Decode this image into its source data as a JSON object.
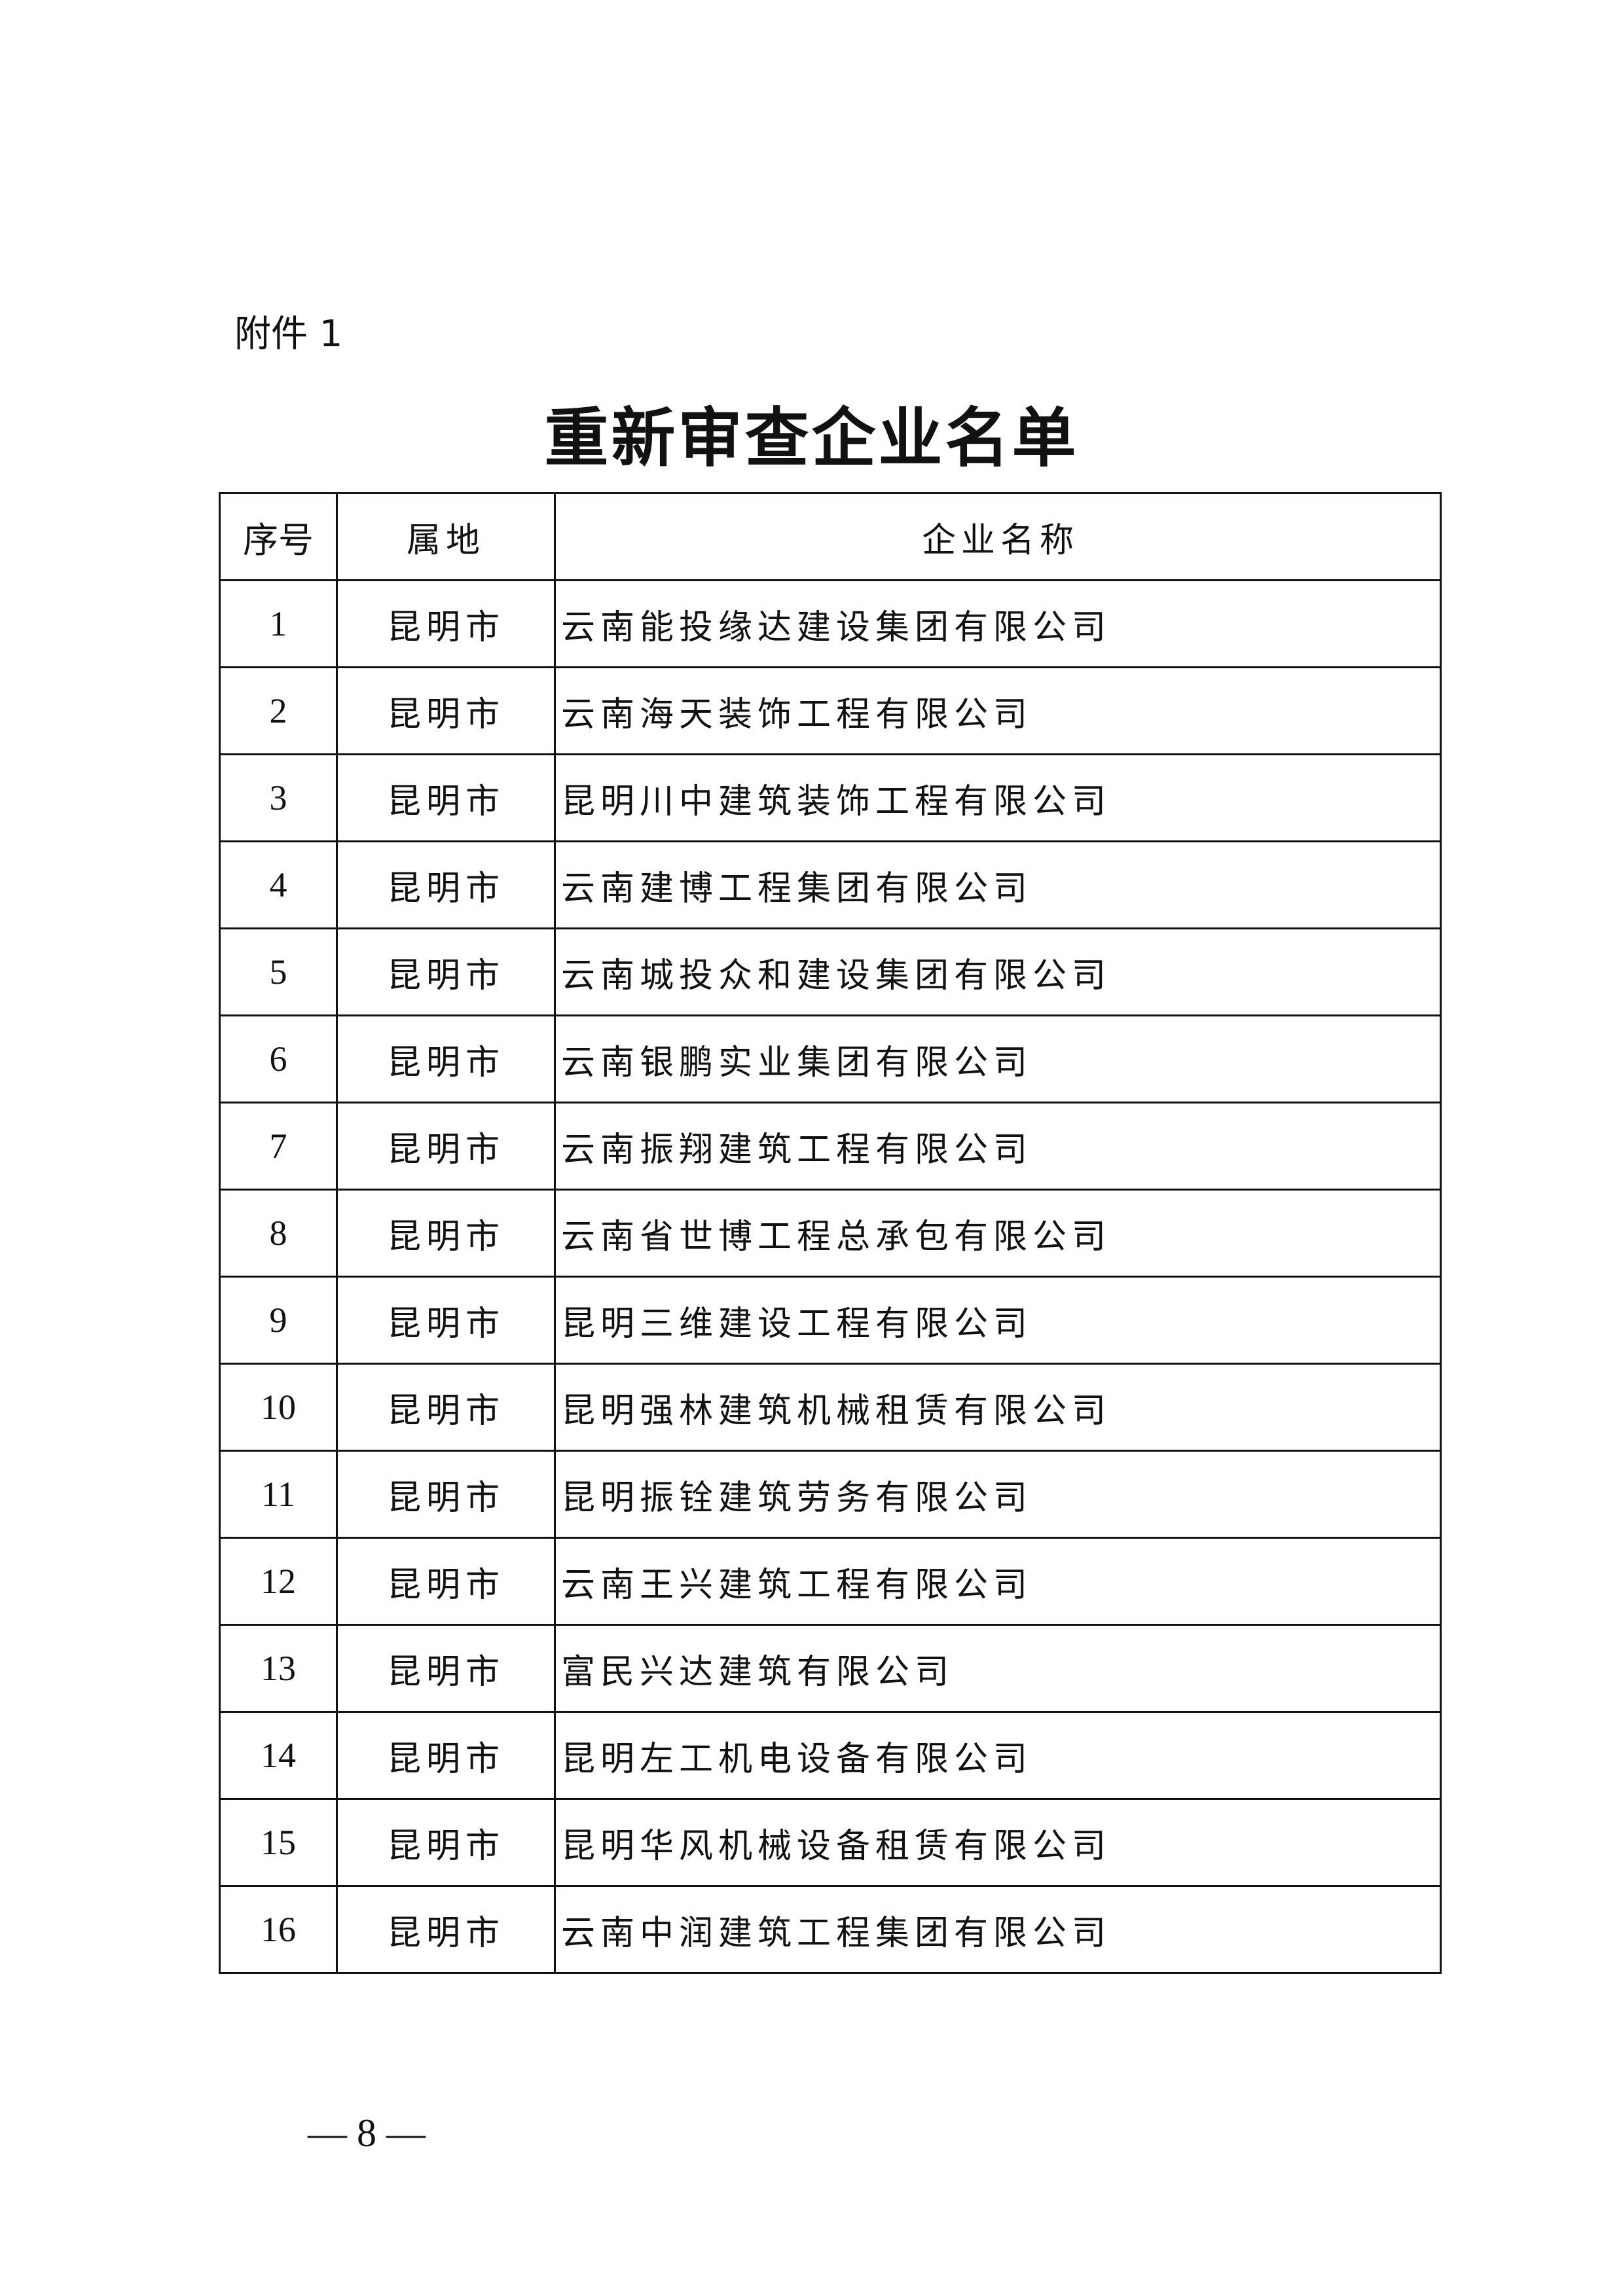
{
  "attachment_label": "附件 1",
  "title": "重新审查企业名单",
  "table": {
    "headers": [
      "序号",
      "属地",
      "企业名称"
    ],
    "rows": [
      [
        "1",
        "昆明市",
        "云南能投缘达建设集团有限公司"
      ],
      [
        "2",
        "昆明市",
        "云南海天装饰工程有限公司"
      ],
      [
        "3",
        "昆明市",
        "昆明川中建筑装饰工程有限公司"
      ],
      [
        "4",
        "昆明市",
        "云南建博工程集团有限公司"
      ],
      [
        "5",
        "昆明市",
        "云南城投众和建设集团有限公司"
      ],
      [
        "6",
        "昆明市",
        "云南银鹏实业集团有限公司"
      ],
      [
        "7",
        "昆明市",
        "云南振翔建筑工程有限公司"
      ],
      [
        "8",
        "昆明市",
        "云南省世博工程总承包有限公司"
      ],
      [
        "9",
        "昆明市",
        "昆明三维建设工程有限公司"
      ],
      [
        "10",
        "昆明市",
        "昆明强林建筑机械租赁有限公司"
      ],
      [
        "11",
        "昆明市",
        "昆明振铨建筑劳务有限公司"
      ],
      [
        "12",
        "昆明市",
        "云南王兴建筑工程有限公司"
      ],
      [
        "13",
        "昆明市",
        "富民兴达建筑有限公司"
      ],
      [
        "14",
        "昆明市",
        "昆明左工机电设备有限公司"
      ],
      [
        "15",
        "昆明市",
        "昆明华风机械设备租赁有限公司"
      ],
      [
        "16",
        "昆明市",
        "云南中润建筑工程集团有限公司"
      ]
    ]
  },
  "page_number": "— 8 —"
}
